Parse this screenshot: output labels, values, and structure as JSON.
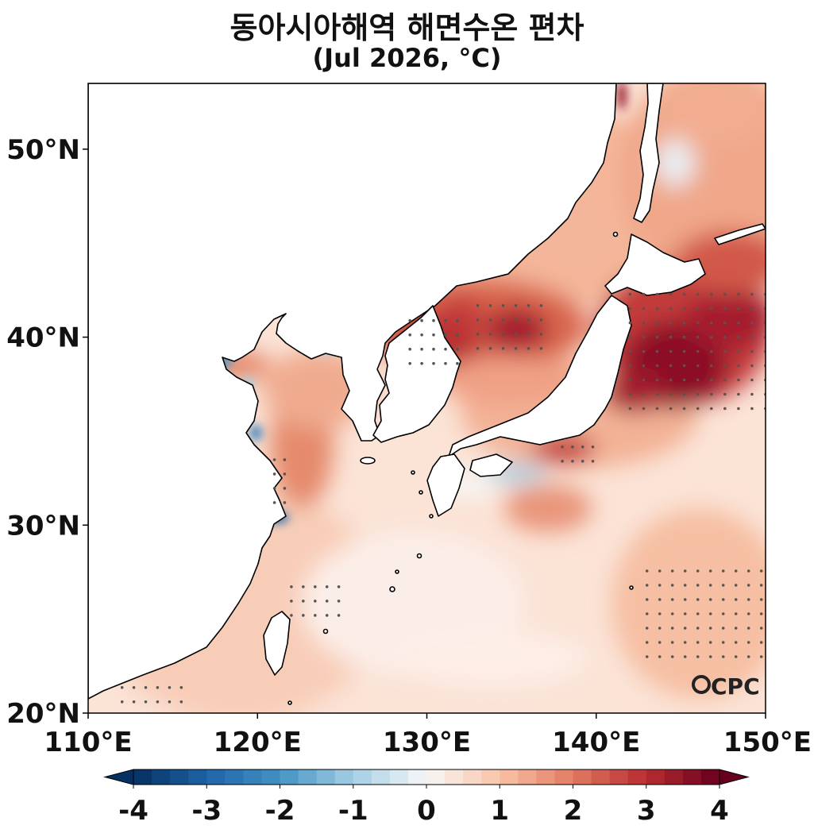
{
  "title": "동아시아해역 해면수온 편차",
  "subtitle": "(Jul 2026, °C)",
  "map": {
    "lon_range": [
      110,
      150
    ],
    "lat_range": [
      20,
      53.5
    ],
    "lon_ticks": [
      "110°E",
      "120°E",
      "130°E",
      "140°E",
      "150°E"
    ],
    "lat_ticks": [
      "20°N",
      "30°N",
      "40°N",
      "50°N"
    ],
    "logo": "CPC"
  },
  "colorbar": {
    "min": -4,
    "max": 4,
    "step": 0.25,
    "tick_labels": [
      "-4",
      "-3",
      "-2",
      "-1",
      "0",
      "1",
      "2",
      "3",
      "4"
    ],
    "colors": {
      "low": "#053061",
      "mid_low": "#4393c3",
      "neutral": "#f7f7f7",
      "mid_high": "#f4a582",
      "high": "#67001f"
    }
  },
  "colors": {
    "land": "#ffffff",
    "ocean_base": "#fbe3d6",
    "coastline": "#000000",
    "stipple": "#555555"
  }
}
